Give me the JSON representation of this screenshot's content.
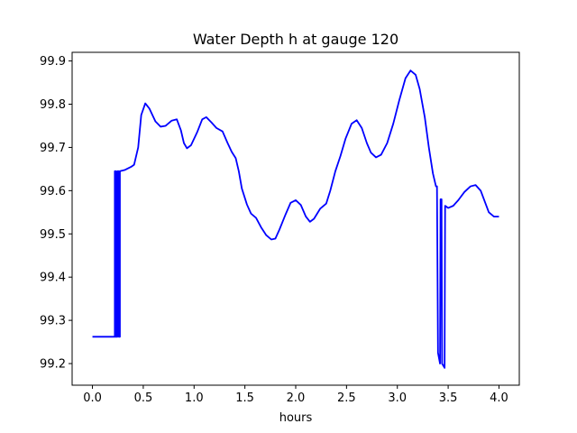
{
  "chart_data": {
    "type": "line",
    "title": "Water Depth h at gauge 120",
    "xlabel": "hours",
    "ylabel": "",
    "xlim": [
      -0.2,
      4.2
    ],
    "ylim": [
      99.15,
      99.92
    ],
    "xticks": [
      0.0,
      0.5,
      1.0,
      1.5,
      2.0,
      2.5,
      3.0,
      3.5,
      4.0
    ],
    "xtick_labels": [
      "0.0",
      "0.5",
      "1.0",
      "1.5",
      "2.0",
      "2.5",
      "3.0",
      "3.5",
      "4.0"
    ],
    "yticks": [
      99.2,
      99.3,
      99.4,
      99.5,
      99.6,
      99.7,
      99.8,
      99.9
    ],
    "ytick_labels": [
      "99.2",
      "99.3",
      "99.4",
      "99.5",
      "99.6",
      "99.7",
      "99.8",
      "99.9"
    ],
    "grid": false,
    "legend": "none",
    "series": [
      {
        "color": "#0000ff",
        "points": [
          [
            0.0,
            99.262
          ],
          [
            0.22,
            99.262
          ],
          [
            0.22,
            99.645
          ],
          [
            0.23,
            99.645
          ],
          [
            0.23,
            99.262
          ],
          [
            0.245,
            99.262
          ],
          [
            0.245,
            99.645
          ],
          [
            0.26,
            99.645
          ],
          [
            0.26,
            99.262
          ],
          [
            0.27,
            99.262
          ],
          [
            0.27,
            99.645
          ],
          [
            0.32,
            99.648
          ],
          [
            0.38,
            99.655
          ],
          [
            0.41,
            99.66
          ],
          [
            0.45,
            99.7
          ],
          [
            0.48,
            99.775
          ],
          [
            0.52,
            99.802
          ],
          [
            0.56,
            99.79
          ],
          [
            0.62,
            99.76
          ],
          [
            0.67,
            99.748
          ],
          [
            0.72,
            99.75
          ],
          [
            0.78,
            99.762
          ],
          [
            0.83,
            99.765
          ],
          [
            0.87,
            99.74
          ],
          [
            0.9,
            99.71
          ],
          [
            0.93,
            99.698
          ],
          [
            0.97,
            99.705
          ],
          [
            1.03,
            99.735
          ],
          [
            1.08,
            99.765
          ],
          [
            1.12,
            99.77
          ],
          [
            1.17,
            99.758
          ],
          [
            1.22,
            99.745
          ],
          [
            1.28,
            99.737
          ],
          [
            1.33,
            99.71
          ],
          [
            1.37,
            99.69
          ],
          [
            1.41,
            99.675
          ],
          [
            1.44,
            99.645
          ],
          [
            1.47,
            99.605
          ],
          [
            1.52,
            99.568
          ],
          [
            1.56,
            99.547
          ],
          [
            1.61,
            99.537
          ],
          [
            1.66,
            99.515
          ],
          [
            1.71,
            99.497
          ],
          [
            1.76,
            99.487
          ],
          [
            1.8,
            99.489
          ],
          [
            1.84,
            99.51
          ],
          [
            1.9,
            99.545
          ],
          [
            1.95,
            99.572
          ],
          [
            2.0,
            99.578
          ],
          [
            2.05,
            99.567
          ],
          [
            2.1,
            99.54
          ],
          [
            2.14,
            99.528
          ],
          [
            2.18,
            99.535
          ],
          [
            2.24,
            99.558
          ],
          [
            2.3,
            99.57
          ],
          [
            2.34,
            99.6
          ],
          [
            2.39,
            99.645
          ],
          [
            2.44,
            99.68
          ],
          [
            2.49,
            99.72
          ],
          [
            2.55,
            99.755
          ],
          [
            2.6,
            99.763
          ],
          [
            2.65,
            99.745
          ],
          [
            2.7,
            99.71
          ],
          [
            2.74,
            99.688
          ],
          [
            2.79,
            99.677
          ],
          [
            2.84,
            99.683
          ],
          [
            2.9,
            99.71
          ],
          [
            2.96,
            99.755
          ],
          [
            3.02,
            99.81
          ],
          [
            3.08,
            99.86
          ],
          [
            3.13,
            99.878
          ],
          [
            3.18,
            99.868
          ],
          [
            3.22,
            99.835
          ],
          [
            3.27,
            99.77
          ],
          [
            3.31,
            99.7
          ],
          [
            3.35,
            99.64
          ],
          [
            3.38,
            99.61
          ],
          [
            3.39,
            99.61
          ],
          [
            3.4,
            99.225
          ],
          [
            3.42,
            99.2
          ],
          [
            3.425,
            99.58
          ],
          [
            3.435,
            99.58
          ],
          [
            3.44,
            99.2
          ],
          [
            3.465,
            99.19
          ],
          [
            3.47,
            99.565
          ],
          [
            3.5,
            99.56
          ],
          [
            3.55,
            99.565
          ],
          [
            3.6,
            99.578
          ],
          [
            3.66,
            99.597
          ],
          [
            3.72,
            99.61
          ],
          [
            3.77,
            99.613
          ],
          [
            3.82,
            99.6
          ],
          [
            3.86,
            99.575
          ],
          [
            3.9,
            99.55
          ],
          [
            3.95,
            99.54
          ],
          [
            4.0,
            99.54
          ]
        ]
      }
    ]
  }
}
